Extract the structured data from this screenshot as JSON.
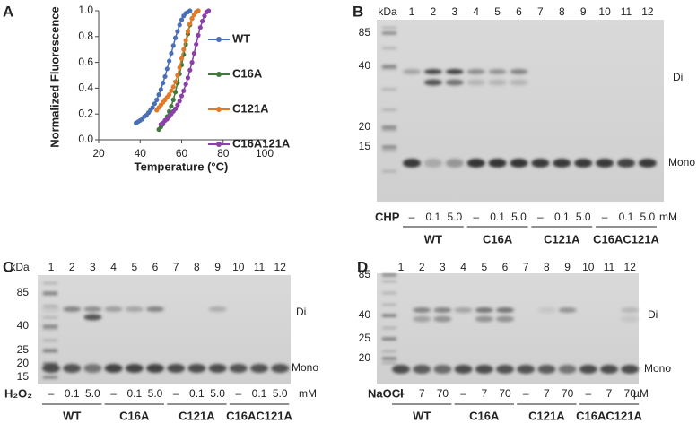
{
  "chart_data": {
    "type": "line",
    "panel": "A",
    "ylabel": "Normalized Fluorescence",
    "xlabel": "Temperature (°C)",
    "xlim": [
      20,
      100
    ],
    "xticks": [
      20,
      40,
      60,
      80,
      100
    ],
    "ylim": [
      0,
      1
    ],
    "yticks": [
      {
        "value": 0,
        "label": "0.0"
      },
      0.2,
      0.4,
      0.6,
      0.8,
      {
        "value": 1,
        "label": "1.0"
      }
    ],
    "series": [
      {
        "name": "WT",
        "color": "#4a6fb5",
        "x": [
          38,
          39,
          40,
          41,
          42,
          43,
          44,
          45,
          46,
          47,
          48,
          49,
          50,
          51,
          52,
          53,
          54,
          55,
          56,
          57,
          58,
          59,
          60,
          61,
          62,
          63,
          64
        ],
        "values": [
          0.13,
          0.14,
          0.15,
          0.16,
          0.18,
          0.19,
          0.21,
          0.23,
          0.25,
          0.28,
          0.31,
          0.35,
          0.39,
          0.44,
          0.49,
          0.55,
          0.61,
          0.67,
          0.73,
          0.79,
          0.84,
          0.89,
          0.93,
          0.96,
          0.98,
          0.99,
          1.0
        ]
      },
      {
        "name": "C16A",
        "color": "#3f7a3a",
        "x": [
          49,
          50,
          51,
          52,
          53,
          54,
          55,
          56,
          57,
          58,
          59,
          60,
          61,
          62,
          63,
          64,
          65,
          66,
          67,
          68
        ],
        "values": [
          0.08,
          0.1,
          0.12,
          0.15,
          0.18,
          0.22,
          0.26,
          0.31,
          0.37,
          0.44,
          0.51,
          0.58,
          0.66,
          0.74,
          0.82,
          0.89,
          0.94,
          0.97,
          0.99,
          1.0
        ]
      },
      {
        "name": "C121A",
        "color": "#e07b2a",
        "x": [
          48,
          49,
          50,
          51,
          52,
          53,
          54,
          55,
          56,
          57,
          58,
          59,
          60,
          61,
          62,
          63,
          64,
          65,
          66,
          67,
          68
        ],
        "values": [
          0.23,
          0.25,
          0.27,
          0.29,
          0.31,
          0.33,
          0.35,
          0.38,
          0.41,
          0.45,
          0.5,
          0.56,
          0.63,
          0.7,
          0.77,
          0.84,
          0.9,
          0.94,
          0.97,
          0.99,
          1.0
        ]
      },
      {
        "name": "C16A121A",
        "color": "#8b3fa8",
        "x": [
          50,
          51,
          52,
          53,
          54,
          55,
          56,
          57,
          58,
          59,
          60,
          61,
          62,
          63,
          64,
          65,
          66,
          67,
          68,
          69,
          70,
          71,
          72,
          73
        ],
        "values": [
          0.12,
          0.13,
          0.15,
          0.16,
          0.18,
          0.2,
          0.22,
          0.24,
          0.27,
          0.3,
          0.34,
          0.38,
          0.43,
          0.48,
          0.54,
          0.6,
          0.67,
          0.74,
          0.81,
          0.87,
          0.92,
          0.96,
          0.99,
          1.0
        ]
      }
    ]
  },
  "gels": [
    {
      "panel": "B",
      "unit_label": "kDa",
      "markers": [
        85,
        40,
        20,
        15
      ],
      "lanes": [
        1,
        2,
        3,
        4,
        5,
        6,
        7,
        8,
        9,
        10,
        11,
        12
      ],
      "bands": [
        "Di",
        "Mono"
      ],
      "treatment": "CHP",
      "doses": [
        "–",
        "0.1",
        "5.0",
        "–",
        "0.1",
        "5.0",
        "–",
        "0.1",
        "5.0",
        "–",
        "0.1",
        "5.0"
      ],
      "dose_unit": "mM",
      "groups": [
        "WT",
        "C16A",
        "C121A",
        "C16AC121A"
      ]
    },
    {
      "panel": "C",
      "unit_label": "kDa",
      "markers": [
        85,
        40,
        25,
        20,
        15
      ],
      "lanes": [
        1,
        2,
        3,
        4,
        5,
        6,
        7,
        8,
        9,
        10,
        11,
        12
      ],
      "bands": [
        "Di",
        "Mono"
      ],
      "treatment": "H₂O₂",
      "doses": [
        "–",
        "0.1",
        "5.0",
        "–",
        "0.1",
        "5.0",
        "–",
        "0.1",
        "5.0",
        "–",
        "0.1",
        "5.0"
      ],
      "dose_unit": "mM",
      "groups": [
        "WT",
        "C16A",
        "C121A",
        "C16AC121A"
      ]
    },
    {
      "panel": "D",
      "markers": [
        85,
        40,
        25,
        20
      ],
      "lanes": [
        1,
        2,
        3,
        4,
        5,
        6,
        7,
        8,
        9,
        10,
        11,
        12
      ],
      "bands": [
        "Di",
        "Mono"
      ],
      "treatment": "NaOCl",
      "doses": [
        "–",
        "7",
        "70",
        "–",
        "7",
        "70",
        "–",
        "7",
        "70",
        "–",
        "7",
        "70"
      ],
      "dose_unit": "µM",
      "groups": [
        "WT",
        "C16A",
        "C121A",
        "C16AC121A"
      ]
    }
  ]
}
